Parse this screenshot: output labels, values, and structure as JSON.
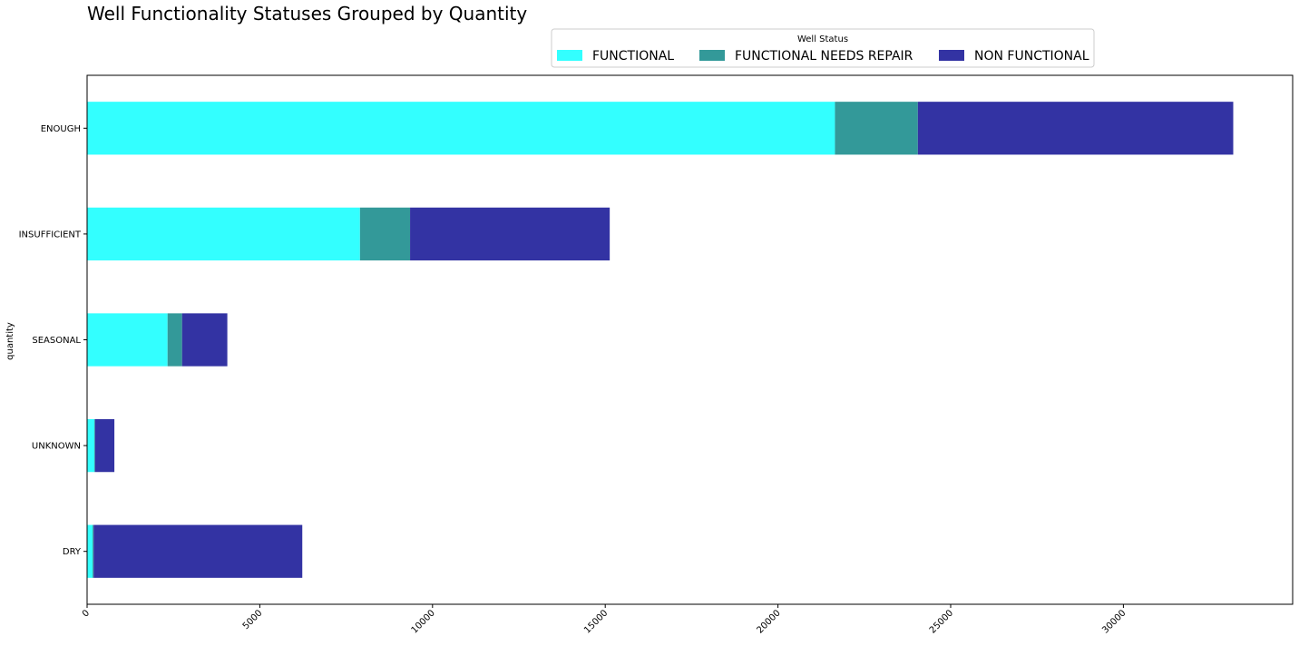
{
  "chart_data": {
    "type": "bar",
    "orientation": "horizontal",
    "stacked": true,
    "title": "Well Functionality Statuses Grouped by Quantity",
    "xlabel": "",
    "ylabel": "quantity",
    "categories": [
      "ENOUGH",
      "INSUFFICIENT",
      "SEASONAL",
      "UNKNOWN",
      "DRY"
    ],
    "series": [
      {
        "name": "FUNCTIONAL",
        "color": "#33ffff",
        "values": [
          21650,
          7900,
          2330,
          210,
          160
        ]
      },
      {
        "name": "FUNCTIONAL NEEDS REPAIR",
        "color": "#339999",
        "values": [
          2400,
          1450,
          420,
          20,
          30
        ]
      },
      {
        "name": "NON FUNCTIONAL",
        "color": "#3333a3",
        "values": [
          9130,
          5780,
          1310,
          560,
          6040
        ]
      }
    ],
    "xlim": [
      0,
      34900
    ],
    "xticks": [
      0,
      5000,
      10000,
      15000,
      20000,
      25000,
      30000
    ],
    "xtick_rotation": 45,
    "grid": false,
    "legend": {
      "title": "Well Status",
      "position": "top-right",
      "ncol": 3
    }
  }
}
